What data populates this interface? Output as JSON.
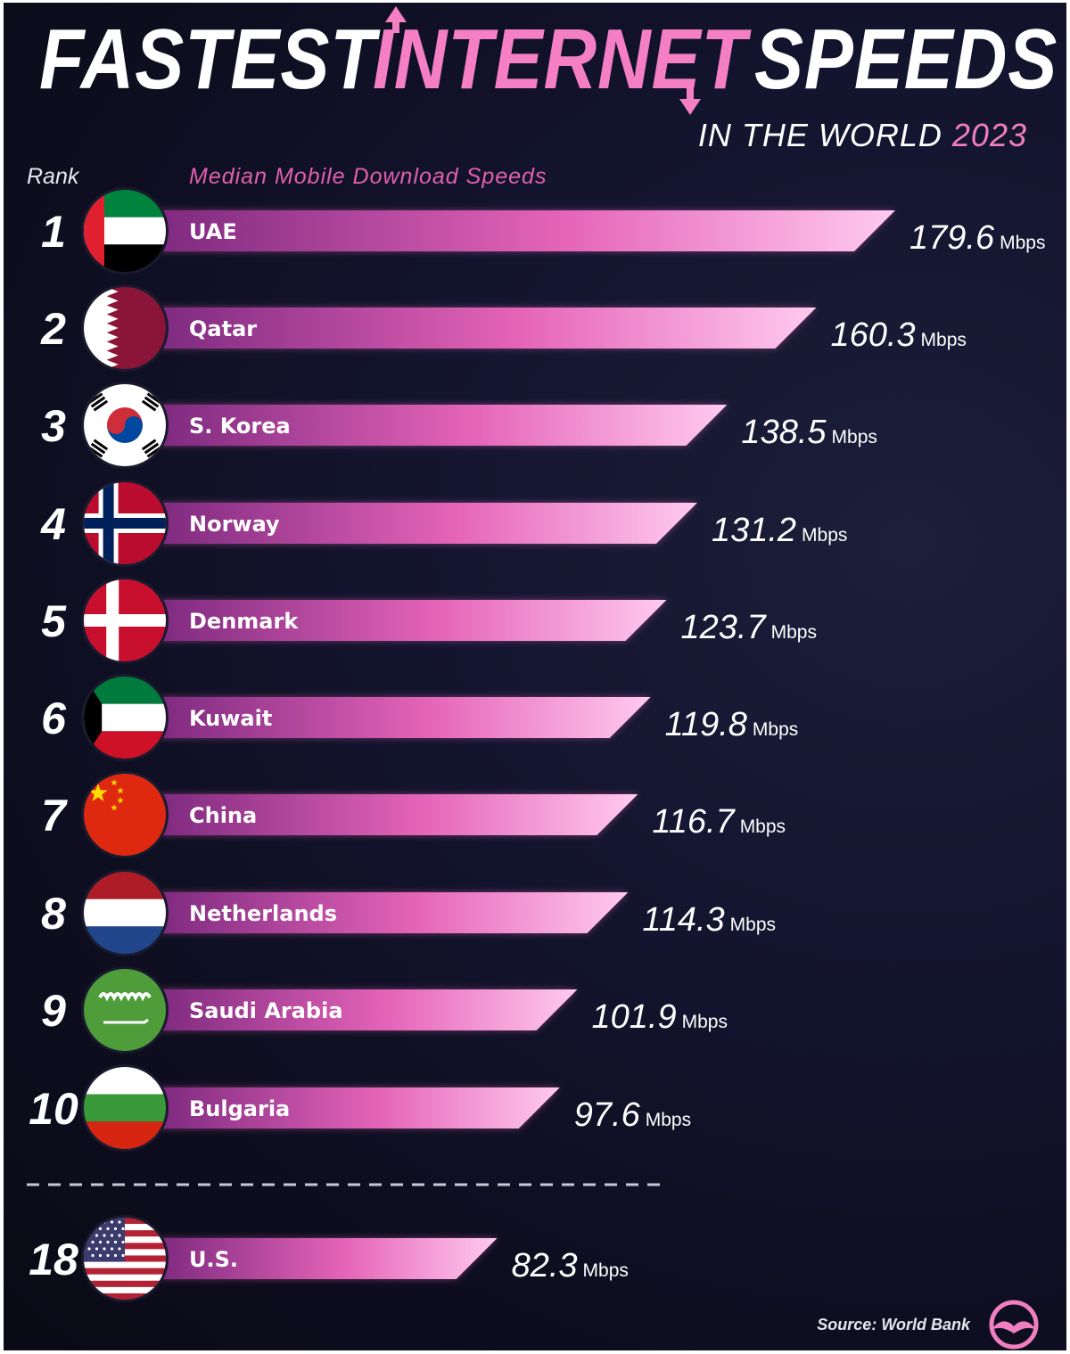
{
  "title": {
    "word1": "FASTEST",
    "word2": "INTERNET",
    "word3": "SPEEDS",
    "subtitle_prefix": "IN THE WORLD",
    "subtitle_year": "2023"
  },
  "headers": {
    "rank": "Rank",
    "metric": "Median Mobile Download Speeds"
  },
  "source": "Source: World Bank",
  "logo_icon": "mustache-logo-icon",
  "colors": {
    "accent": "#f07fc0",
    "bar_start": "#8a2f88",
    "bar_end": "#ffc6ee",
    "background": "#12132a"
  },
  "chart_data": {
    "type": "bar",
    "orientation": "horizontal",
    "title": "FASTEST INTERNET SPEEDS IN THE WORLD 2023",
    "metric": "Median Mobile Download Speeds",
    "unit": "Mbps",
    "rows": [
      {
        "rank": "1",
        "country": "UAE",
        "value": 179.6,
        "value_label": "179.6",
        "flag": "uae-flag-icon"
      },
      {
        "rank": "2",
        "country": "Qatar",
        "value": 160.3,
        "value_label": "160.3",
        "flag": "qatar-flag-icon"
      },
      {
        "rank": "3",
        "country": "S. Korea",
        "value": 138.5,
        "value_label": "138.5",
        "flag": "south-korea-flag-icon"
      },
      {
        "rank": "4",
        "country": "Norway",
        "value": 131.2,
        "value_label": "131.2",
        "flag": "norway-flag-icon"
      },
      {
        "rank": "5",
        "country": "Denmark",
        "value": 123.7,
        "value_label": "123.7",
        "flag": "denmark-flag-icon"
      },
      {
        "rank": "6",
        "country": "Kuwait",
        "value": 119.8,
        "value_label": "119.8",
        "flag": "kuwait-flag-icon"
      },
      {
        "rank": "7",
        "country": "China",
        "value": 116.7,
        "value_label": "116.7",
        "flag": "china-flag-icon"
      },
      {
        "rank": "8",
        "country": "Netherlands",
        "value": 114.3,
        "value_label": "114.3",
        "flag": "netherlands-flag-icon"
      },
      {
        "rank": "9",
        "country": "Saudi Arabia",
        "value": 101.9,
        "value_label": "101.9",
        "flag": "saudi-arabia-flag-icon"
      },
      {
        "rank": "10",
        "country": "Bulgaria",
        "value": 97.6,
        "value_label": "97.6",
        "flag": "bulgaria-flag-icon"
      },
      {
        "rank": "18",
        "country": "U.S.",
        "value": 82.3,
        "value_label": "82.3",
        "flag": "usa-flag-icon"
      }
    ]
  }
}
